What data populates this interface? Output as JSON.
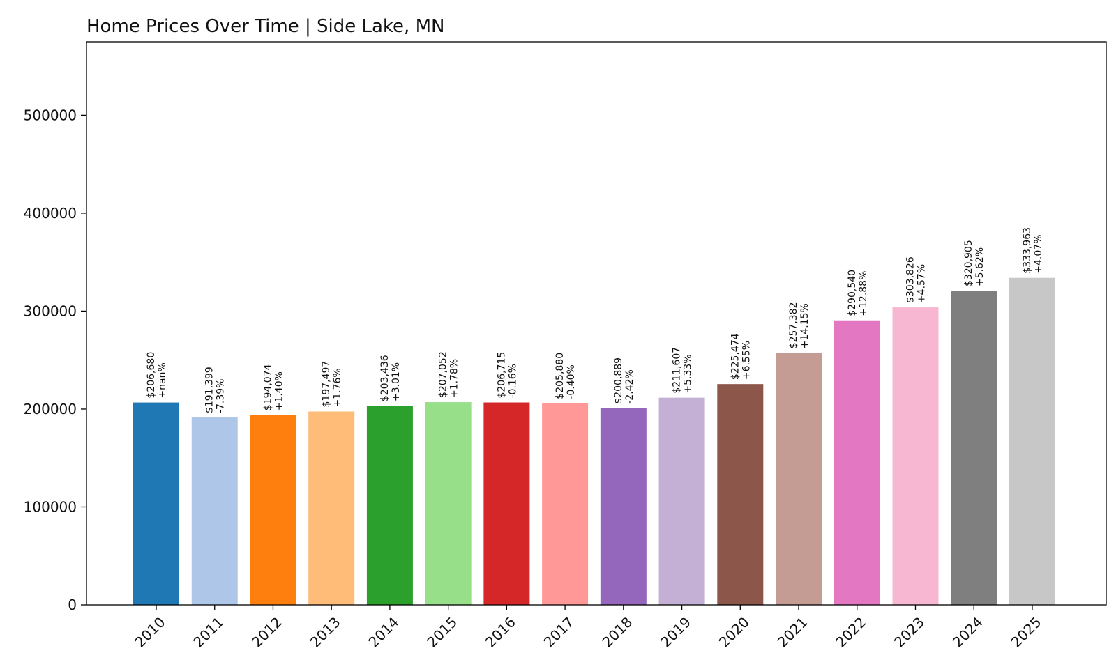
{
  "chart_data": {
    "type": "bar",
    "title": "Home Prices Over Time | Side Lake, MN",
    "xlabel": "",
    "ylabel": "",
    "ylim": [
      0,
      575000
    ],
    "yticks": [
      0,
      100000,
      200000,
      300000,
      400000,
      500000
    ],
    "ytick_labels": [
      "0",
      "100000",
      "200000",
      "300000",
      "400000",
      "500000"
    ],
    "grid": false,
    "legend": "none",
    "categories": [
      "2010",
      "2011",
      "2012",
      "2013",
      "2014",
      "2015",
      "2016",
      "2017",
      "2018",
      "2019",
      "2020",
      "2021",
      "2022",
      "2023",
      "2024",
      "2025"
    ],
    "values": [
      206680,
      191399,
      194074,
      197497,
      203436,
      207052,
      206715,
      205880,
      200889,
      211607,
      225474,
      257382,
      290540,
      303826,
      320905,
      333963
    ],
    "value_labels": [
      "$206,680",
      "$191,399",
      "$194,074",
      "$197,497",
      "$203,436",
      "$207,052",
      "$206,715",
      "$205,880",
      "$200,889",
      "$211,607",
      "$225,474",
      "$257,382",
      "$290,540",
      "$303,826",
      "$320,905",
      "$333,963"
    ],
    "change_labels": [
      "+nan%",
      "-7.39%",
      "+1.40%",
      "+1.76%",
      "+3.01%",
      "+1.78%",
      "-0.16%",
      "-0.40%",
      "-2.42%",
      "+5.33%",
      "+6.55%",
      "+14.15%",
      "+12.88%",
      "+4.57%",
      "+5.62%",
      "+4.07%"
    ],
    "colors": [
      "#1f77b4",
      "#aec7e8",
      "#ff7f0e",
      "#ffbb78",
      "#2ca02c",
      "#98df8a",
      "#d62728",
      "#ff9896",
      "#9467bd",
      "#c5b0d5",
      "#8c564b",
      "#c49c94",
      "#e377c2",
      "#f7b6d2",
      "#7f7f7f",
      "#c7c7c7"
    ]
  }
}
